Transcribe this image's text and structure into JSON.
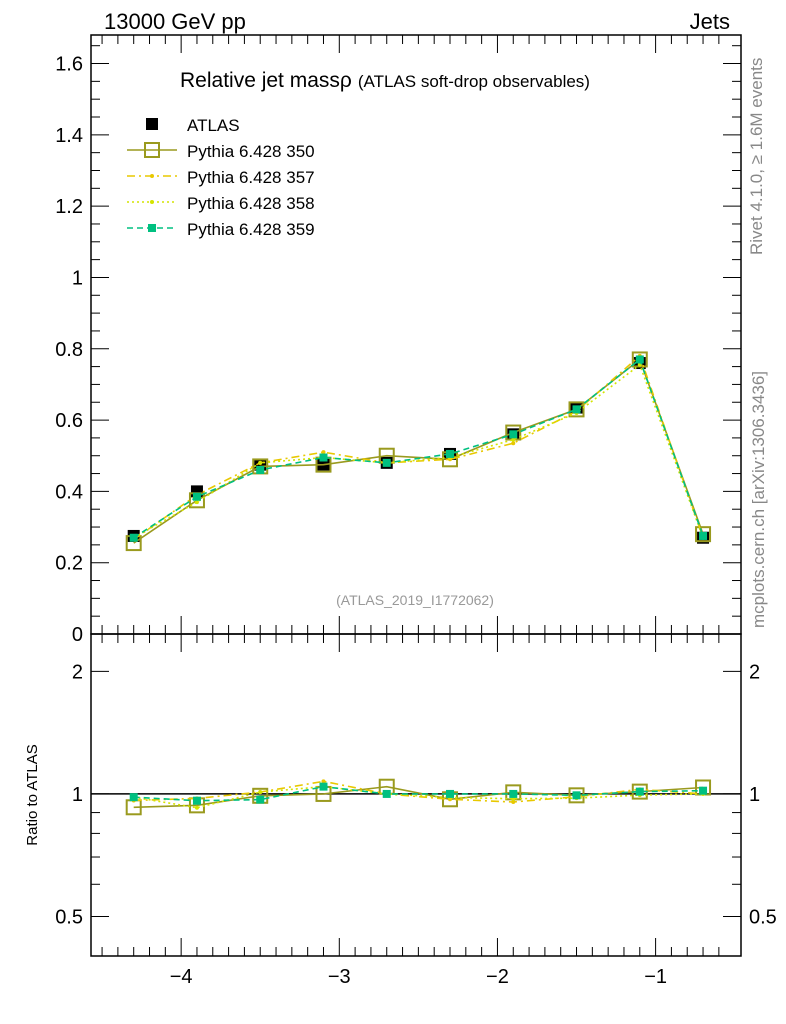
{
  "header": {
    "left": "13000 GeV pp",
    "right": "Jets"
  },
  "side_text": {
    "top": "Rivet 4.1.0, ≥ 1.6M events",
    "bottom": "mcplots.cern.ch [arXiv:1306.3436]"
  },
  "chart_data": [
    {
      "type": "scatter",
      "title": "Relative jet massρ",
      "subtitle": "(ATLAS soft-drop observables)",
      "watermark": "(ATLAS_2019_I1772062)",
      "xlabel": "",
      "ylabel": "",
      "xlim": [
        -4.57,
        -0.46
      ],
      "ylim": [
        0,
        1.68
      ],
      "yticks": [
        0,
        0.2,
        0.4,
        0.6,
        0.8,
        1,
        1.2,
        1.4,
        1.6
      ],
      "ytick_labels": [
        "0",
        "0.2",
        "0.4",
        "0.6",
        "0.8",
        "1",
        "1.2",
        "1.4",
        "1.6"
      ],
      "legend_position": "top-left",
      "x": [
        -4.3,
        -3.9,
        -3.5,
        -3.1,
        -2.7,
        -2.3,
        -1.9,
        -1.5,
        -1.1,
        -0.7
      ],
      "series": [
        {
          "name": "ATLAS",
          "color": "#000000",
          "style": "marker-square-filled",
          "values": [
            0.275,
            0.4,
            0.475,
            0.475,
            0.48,
            0.505,
            0.56,
            0.635,
            0.76,
            0.27
          ]
        },
        {
          "name": "Pythia 6.428 350",
          "color": "#9a9a1e",
          "style": "solid-open-square",
          "values": [
            0.255,
            0.375,
            0.47,
            0.475,
            0.5,
            0.49,
            0.565,
            0.63,
            0.77,
            0.28
          ]
        },
        {
          "name": "Pythia 6.428 357",
          "color": "#e8c800",
          "style": "dashdot",
          "values": [
            0.265,
            0.39,
            0.48,
            0.51,
            0.48,
            0.49,
            0.535,
            0.625,
            0.78,
            0.27
          ]
        },
        {
          "name": "Pythia 6.428 358",
          "color": "#d4e400",
          "style": "dotted",
          "values": [
            0.27,
            0.37,
            0.48,
            0.495,
            0.48,
            0.495,
            0.545,
            0.62,
            0.755,
            0.27
          ]
        },
        {
          "name": "Pythia 6.428 359",
          "color": "#00c080",
          "style": "dashed",
          "values": [
            0.27,
            0.385,
            0.46,
            0.495,
            0.48,
            0.505,
            0.56,
            0.63,
            0.77,
            0.275
          ]
        }
      ]
    },
    {
      "type": "line",
      "title": "",
      "ylabel": "Ratio to ATLAS",
      "yscale": "log",
      "ylim": [
        0.4,
        2.47
      ],
      "yticks": [
        0.5,
        1,
        2
      ],
      "ytick_labels": [
        "0.5",
        "1",
        "2"
      ],
      "xticks": [
        -4,
        -3,
        -2,
        -1
      ],
      "xtick_labels": [
        "−4",
        "−3",
        "−2",
        "−1"
      ],
      "reference": 1
    }
  ]
}
